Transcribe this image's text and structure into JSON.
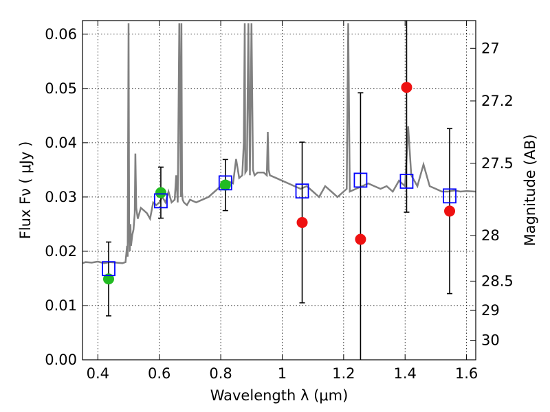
{
  "chart_data": {
    "type": "scatter",
    "xlabel": "Wavelength  λ (μm)",
    "ylabel": "Flux  Fν  ( μJy )",
    "y2label": "Magnitude (AB)",
    "xlim": [
      0.35,
      1.63
    ],
    "ylim": [
      0.0,
      0.0625
    ],
    "grid": true,
    "xticks": [
      0.4,
      0.6,
      0.8,
      1.0,
      1.2,
      1.4,
      1.6
    ],
    "xtick_labels": [
      "0.4",
      "0.6",
      "0.8",
      "1",
      "1.2",
      "1.4",
      "1.6"
    ],
    "yticks": [
      0.0,
      0.01,
      0.02,
      0.03,
      0.04,
      0.05,
      0.06
    ],
    "ytick_labels": [
      "0.00",
      "0.01",
      "0.02",
      "0.03",
      "0.04",
      "0.05",
      "0.06"
    ],
    "right_ticks": [
      {
        "label": "27",
        "flux": 0.0574
      },
      {
        "label": "27.2",
        "flux": 0.0477
      },
      {
        "label": "27.5",
        "flux": 0.0362
      },
      {
        "label": "28",
        "flux": 0.0229
      },
      {
        "label": "28.5",
        "flux": 0.0145
      },
      {
        "label": "29",
        "flux": 0.0091
      },
      {
        "label": "30",
        "flux": 0.0036
      }
    ],
    "colors": {
      "spectrum": "#808080",
      "model_box": "#0000ff",
      "detected": "#22bb22",
      "other": "#ee1111",
      "errorbar": "#000000"
    },
    "spectrum": {
      "x": [
        0.35,
        0.36,
        0.38,
        0.4,
        0.42,
        0.44,
        0.46,
        0.48,
        0.49,
        0.495,
        0.497,
        0.5,
        0.502,
        0.504,
        0.506,
        0.508,
        0.512,
        0.516,
        0.52,
        0.522,
        0.525,
        0.53,
        0.54,
        0.55,
        0.56,
        0.57,
        0.58,
        0.59,
        0.6,
        0.61,
        0.62,
        0.63,
        0.64,
        0.65,
        0.655,
        0.66,
        0.665,
        0.67,
        0.672,
        0.674,
        0.676,
        0.68,
        0.69,
        0.7,
        0.72,
        0.74,
        0.76,
        0.78,
        0.8,
        0.82,
        0.84,
        0.85,
        0.86,
        0.87,
        0.875,
        0.878,
        0.88,
        0.885,
        0.89,
        0.895,
        0.9,
        0.905,
        0.91,
        0.92,
        0.94,
        0.95,
        0.953,
        0.956,
        0.96,
        0.98,
        1.0,
        1.02,
        1.04,
        1.06,
        1.08,
        1.1,
        1.12,
        1.14,
        1.16,
        1.18,
        1.2,
        1.21,
        1.215,
        1.22,
        1.24,
        1.26,
        1.28,
        1.3,
        1.32,
        1.34,
        1.36,
        1.38,
        1.4,
        1.41,
        1.42,
        1.44,
        1.46,
        1.48,
        1.5,
        1.52,
        1.54,
        1.56,
        1.58,
        1.6,
        1.63
      ],
      "y": [
        0.0178,
        0.018,
        0.0179,
        0.0181,
        0.0178,
        0.018,
        0.0179,
        0.0178,
        0.018,
        0.021,
        0.019,
        0.062,
        0.023,
        0.02,
        0.025,
        0.021,
        0.023,
        0.024,
        0.027,
        0.038,
        0.028,
        0.026,
        0.028,
        0.0275,
        0.027,
        0.026,
        0.029,
        0.0285,
        0.029,
        0.03,
        0.029,
        0.031,
        0.029,
        0.0295,
        0.034,
        0.029,
        0.062,
        0.03,
        0.062,
        0.031,
        0.0295,
        0.029,
        0.0285,
        0.0295,
        0.029,
        0.0295,
        0.03,
        0.031,
        0.032,
        0.033,
        0.0325,
        0.037,
        0.0335,
        0.034,
        0.04,
        0.062,
        0.0345,
        0.035,
        0.062,
        0.034,
        0.062,
        0.035,
        0.034,
        0.0345,
        0.0345,
        0.034,
        0.042,
        0.035,
        0.034,
        0.0335,
        0.033,
        0.0325,
        0.032,
        0.0315,
        0.032,
        0.031,
        0.03,
        0.032,
        0.031,
        0.03,
        0.031,
        0.0315,
        0.062,
        0.031,
        0.0315,
        0.032,
        0.0325,
        0.032,
        0.0315,
        0.032,
        0.031,
        0.033,
        0.032,
        0.043,
        0.034,
        0.032,
        0.036,
        0.032,
        0.0315,
        0.031,
        0.031,
        0.0312,
        0.031,
        0.0311,
        0.031
      ]
    },
    "model_points": {
      "x": [
        0.435,
        0.605,
        0.815,
        1.065,
        1.255,
        1.405,
        1.545
      ],
      "y": [
        0.0168,
        0.0293,
        0.0326,
        0.0311,
        0.0331,
        0.0329,
        0.0302
      ]
    },
    "detected_points": {
      "x": [
        0.435,
        0.605,
        0.815
      ],
      "y": [
        0.0149,
        0.0308,
        0.0322
      ],
      "err": [
        0.0068,
        0.0047,
        0.0047
      ]
    },
    "other_points": {
      "x": [
        1.065,
        1.255,
        1.405,
        1.545
      ],
      "y": [
        0.0253,
        0.0222,
        0.0502,
        0.0274
      ],
      "err": [
        0.0148,
        0.027,
        0.023,
        0.0152
      ]
    }
  }
}
